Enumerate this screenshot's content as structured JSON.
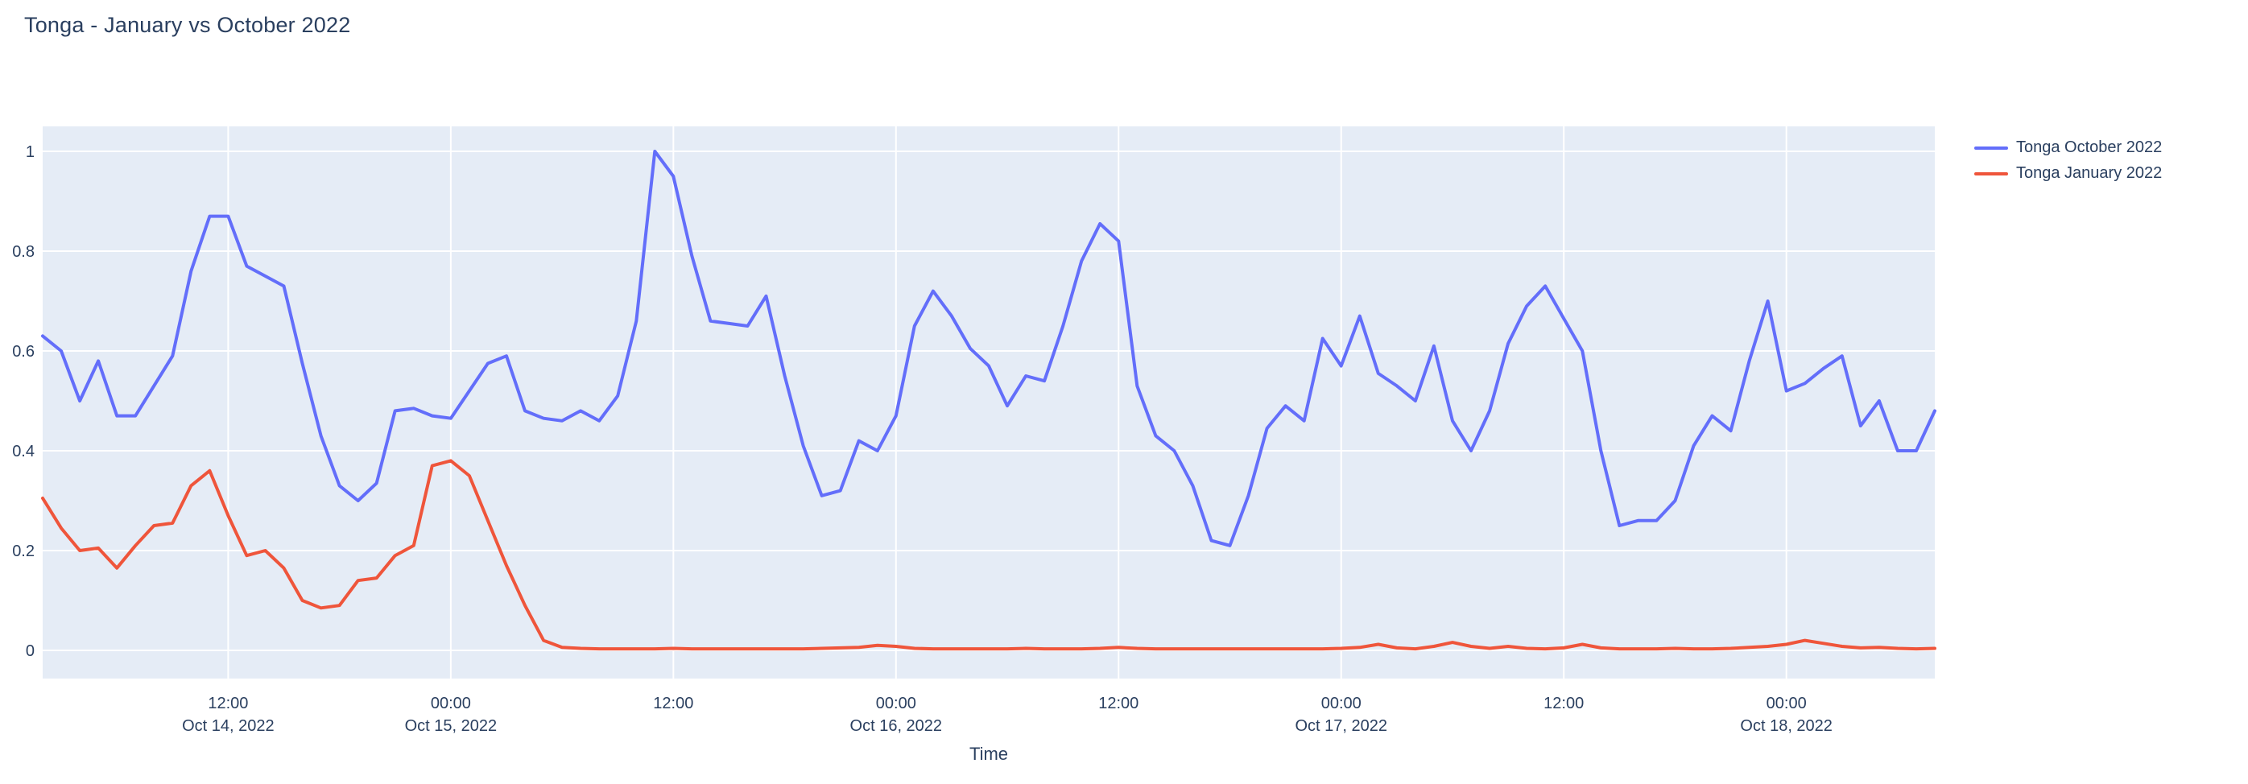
{
  "chart_data": {
    "type": "line",
    "title": "Tonga - January vs October 2022",
    "xlabel": "Time",
    "ylabel": "",
    "x_start": "2022-10-14 02:00",
    "x_step_hours": 1,
    "x_range_hours": [
      0,
      102
    ],
    "y_range": [
      -0.0565,
      1.05
    ],
    "grid": true,
    "legend_position": "right",
    "plot_bg_color": "#E5ECF6",
    "grid_color": "#FFFFFF",
    "text_color": "#2a3f5f",
    "y_ticks": [
      {
        "value": 0,
        "label": "0"
      },
      {
        "value": 0.2,
        "label": "0.2"
      },
      {
        "value": 0.4,
        "label": "0.4"
      },
      {
        "value": 0.6,
        "label": "0.6"
      },
      {
        "value": 0.8,
        "label": "0.8"
      },
      {
        "value": 1,
        "label": "1"
      }
    ],
    "x_ticks": [
      {
        "hour": 10,
        "line1": "12:00",
        "line2": "Oct 14, 2022"
      },
      {
        "hour": 22,
        "line1": "00:00",
        "line2": "Oct 15, 2022"
      },
      {
        "hour": 34,
        "line1": "12:00",
        "line2": ""
      },
      {
        "hour": 46,
        "line1": "00:00",
        "line2": "Oct 16, 2022"
      },
      {
        "hour": 58,
        "line1": "12:00",
        "line2": ""
      },
      {
        "hour": 70,
        "line1": "00:00",
        "line2": "Oct 17, 2022"
      },
      {
        "hour": 82,
        "line1": "12:00",
        "line2": ""
      },
      {
        "hour": 94,
        "line1": "00:00",
        "line2": "Oct 18, 2022"
      }
    ],
    "series": [
      {
        "name": "Tonga October 2022",
        "color": "#636EFA",
        "values": [
          0.63,
          0.6,
          0.5,
          0.58,
          0.47,
          0.47,
          0.53,
          0.59,
          0.76,
          0.87,
          0.87,
          0.77,
          0.75,
          0.73,
          0.575,
          0.43,
          0.33,
          0.3,
          0.335,
          0.48,
          0.485,
          0.47,
          0.465,
          0.52,
          0.575,
          0.59,
          0.48,
          0.465,
          0.46,
          0.48,
          0.46,
          0.51,
          0.66,
          1.0,
          0.95,
          0.79,
          0.66,
          0.655,
          0.65,
          0.71,
          0.55,
          0.41,
          0.31,
          0.32,
          0.42,
          0.4,
          0.47,
          0.65,
          0.72,
          0.67,
          0.605,
          0.57,
          0.49,
          0.55,
          0.54,
          0.65,
          0.78,
          0.855,
          0.82,
          0.53,
          0.43,
          0.4,
          0.33,
          0.22,
          0.21,
          0.31,
          0.445,
          0.49,
          0.46,
          0.625,
          0.57,
          0.67,
          0.555,
          0.53,
          0.5,
          0.61,
          0.46,
          0.4,
          0.48,
          0.615,
          0.69,
          0.73,
          0.665,
          0.6,
          0.4,
          0.25,
          0.26,
          0.26,
          0.3,
          0.41,
          0.47,
          0.44,
          0.58,
          0.7,
          0.52,
          0.535,
          0.565,
          0.59,
          0.45,
          0.5,
          0.4,
          0.4,
          0.48
        ]
      },
      {
        "name": "Tonga January 2022",
        "color": "#EF553B",
        "values": [
          0.305,
          0.245,
          0.2,
          0.205,
          0.165,
          0.21,
          0.25,
          0.255,
          0.33,
          0.36,
          0.27,
          0.19,
          0.2,
          0.165,
          0.1,
          0.085,
          0.09,
          0.14,
          0.145,
          0.19,
          0.21,
          0.37,
          0.38,
          0.35,
          0.26,
          0.17,
          0.09,
          0.02,
          0.006,
          0.004,
          0.003,
          0.003,
          0.003,
          0.003,
          0.004,
          0.003,
          0.003,
          0.003,
          0.003,
          0.003,
          0.003,
          0.003,
          0.004,
          0.005,
          0.006,
          0.01,
          0.008,
          0.004,
          0.003,
          0.003,
          0.003,
          0.003,
          0.003,
          0.004,
          0.003,
          0.003,
          0.003,
          0.004,
          0.006,
          0.004,
          0.003,
          0.003,
          0.003,
          0.003,
          0.003,
          0.003,
          0.003,
          0.003,
          0.003,
          0.003,
          0.004,
          0.006,
          0.012,
          0.005,
          0.003,
          0.008,
          0.016,
          0.008,
          0.004,
          0.008,
          0.004,
          0.003,
          0.005,
          0.012,
          0.005,
          0.003,
          0.003,
          0.003,
          0.004,
          0.003,
          0.003,
          0.004,
          0.006,
          0.008,
          0.012,
          0.02,
          0.014,
          0.008,
          0.005,
          0.006,
          0.004,
          0.003,
          0.004
        ]
      }
    ]
  }
}
